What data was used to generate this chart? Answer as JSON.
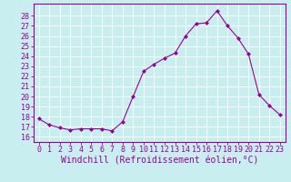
{
  "hours": [
    0,
    1,
    2,
    3,
    4,
    5,
    6,
    7,
    8,
    9,
    10,
    11,
    12,
    13,
    14,
    15,
    16,
    17,
    18,
    19,
    20,
    21,
    22,
    23
  ],
  "windchill": [
    17.8,
    17.2,
    16.9,
    16.7,
    16.8,
    16.8,
    16.8,
    16.6,
    17.5,
    20.0,
    22.5,
    23.2,
    23.8,
    24.3,
    26.0,
    27.2,
    27.3,
    28.5,
    27.0,
    25.8,
    24.2,
    20.2,
    19.1,
    18.2
  ],
  "line_color": "#990099",
  "marker": "D",
  "markersize": 2.0,
  "linewidth": 0.8,
  "xlabel": "Windchill (Refroidissement éolien,°C)",
  "xlabel_fontsize": 7.0,
  "ylabel_values": [
    16,
    17,
    18,
    19,
    20,
    21,
    22,
    23,
    24,
    25,
    26,
    27,
    28
  ],
  "ylim": [
    15.5,
    29.2
  ],
  "xlim": [
    -0.5,
    23.5
  ],
  "bg_color": "#c8eef0",
  "grid_color": "#aadddd",
  "tick_fontsize": 6.0,
  "spine_color": "#990099"
}
